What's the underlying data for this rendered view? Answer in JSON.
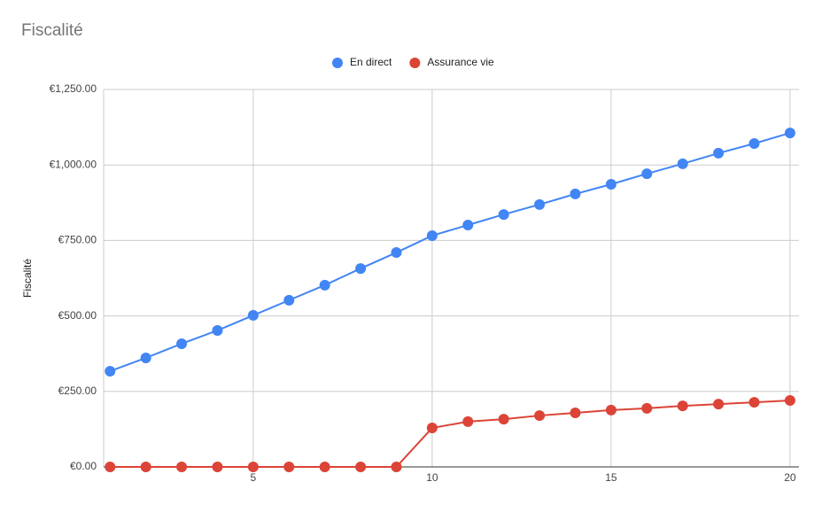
{
  "chart_data": {
    "type": "line",
    "title": "Fiscalité",
    "y_label": "Fiscalité",
    "x": [
      1,
      2,
      3,
      4,
      5,
      6,
      7,
      8,
      9,
      10,
      11,
      12,
      13,
      14,
      15,
      16,
      17,
      18,
      19,
      20
    ],
    "series": [
      {
        "name": "En direct",
        "color": "#4285f4",
        "values": [
          317,
          361,
          408,
          452,
          502,
          552,
          602,
          657,
          710,
          766,
          801,
          836,
          869,
          904,
          936,
          971,
          1004,
          1039,
          1071,
          1106
        ]
      },
      {
        "name": "Assurance vie",
        "color": "#db4437",
        "values": [
          0,
          0,
          0,
          0,
          0,
          0,
          0,
          0,
          0,
          129,
          150,
          158,
          170,
          179,
          188,
          194,
          202,
          208,
          214,
          220
        ]
      }
    ],
    "xlim": [
      0.82,
      20.25
    ],
    "xticks": [
      5,
      10,
      15,
      20
    ],
    "ylim": [
      0,
      1250
    ],
    "yticks": [
      {
        "value": 0,
        "label": "€0.00"
      },
      {
        "value": 250,
        "label": "€250.00"
      },
      {
        "value": 500,
        "label": "€500.00"
      },
      {
        "value": 750,
        "label": "€750.00"
      },
      {
        "value": 1000,
        "label": "€1,000.00"
      },
      {
        "value": 1250,
        "label": "€1,250.00"
      }
    ],
    "grid": true,
    "legend": "top"
  }
}
